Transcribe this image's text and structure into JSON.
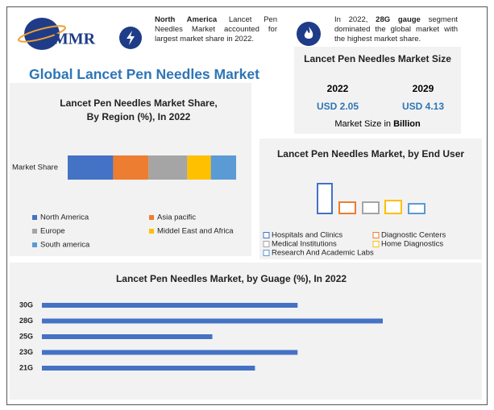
{
  "header": {
    "logo": "MMR",
    "title": "Global Lancet Pen Needles Market",
    "note1_bold": "North America",
    "note1": "Lancet Pen Needles Market accounted for largest market share in 2022.",
    "note2_a": "In 2022,",
    "note2_bold": "28G gauge",
    "note2_b": "segment dominated the global market with the highest market share."
  },
  "market_size": {
    "title": "Lancet Pen Needles Market Size",
    "years": [
      "2022",
      "2029"
    ],
    "values": [
      "USD 2.05",
      "USD 4.13"
    ],
    "unit_label": "Market Size in",
    "unit": "Billion"
  },
  "chart_data": [
    {
      "type": "stacked-hbar",
      "title": "Lancet Pen Needles  Market Share, By Region (%), In 2022",
      "categories": [
        "Market Share"
      ],
      "xlim": [
        0,
        100
      ],
      "series": [
        {
          "name": "North America",
          "color": "#4472c4",
          "values": [
            27
          ]
        },
        {
          "name": "Asia pacific",
          "color": "#ed7d31",
          "values": [
            21
          ]
        },
        {
          "name": "Europe",
          "color": "#a5a5a5",
          "values": [
            23
          ]
        },
        {
          "name": "Middel East and Africa",
          "color": "#ffc000",
          "values": [
            14
          ]
        },
        {
          "name": "South america",
          "color": "#5b9bd5",
          "values": [
            15
          ]
        }
      ]
    },
    {
      "type": "outline-bar",
      "title": "Lancet Pen Needles Market, by End User",
      "ylim": [
        0,
        40
      ],
      "series": [
        {
          "name": "Hospitals and Clinics",
          "color": "#4472c4",
          "values": [
            37
          ]
        },
        {
          "name": "Diagnostic Centers",
          "color": "#ed7d31",
          "values": [
            14
          ]
        },
        {
          "name": "Medical Institutions",
          "color": "#a5a5a5",
          "values": [
            14
          ]
        },
        {
          "name": "Home Diagnostics",
          "color": "#ffc000",
          "values": [
            16
          ]
        },
        {
          "name": "Research And Academic Labs",
          "color": "#5b9bd5",
          "values": [
            12
          ]
        }
      ]
    },
    {
      "type": "hbar",
      "title": "Lancet Pen Needles Market, by Guage (%), In 2022",
      "categories": [
        "30G",
        "28G",
        "25G",
        "23G",
        "21G"
      ],
      "values": [
        30,
        40,
        20,
        30,
        25
      ],
      "color": "#4472c4",
      "xlim": [
        0,
        40
      ]
    }
  ]
}
